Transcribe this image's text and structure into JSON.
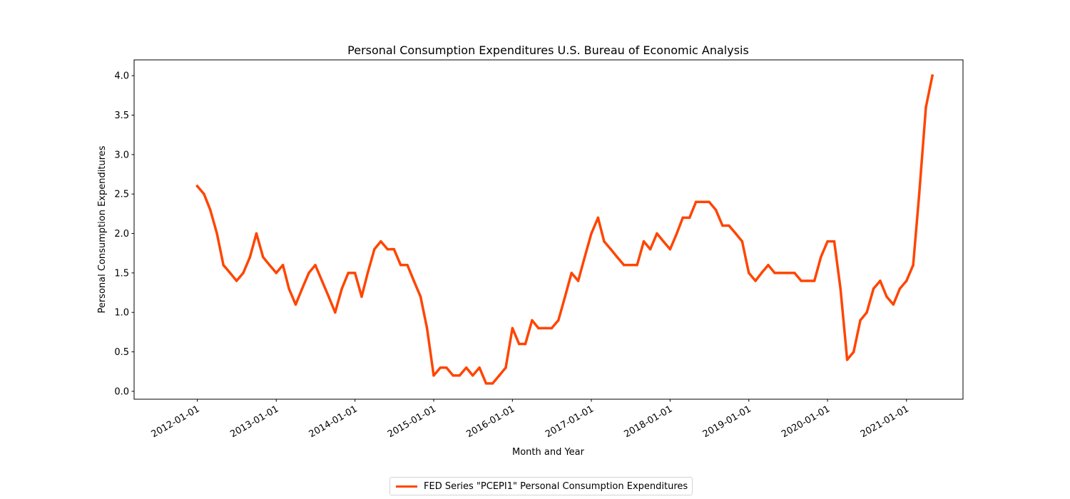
{
  "chart_data": {
    "type": "line",
    "title": "Personal Consumption Expenditures U.S. Bureau of Economic Analysis",
    "xlabel": "Month and Year",
    "ylabel": "Personal Consumption Expenditures",
    "x_tick_labels": [
      "2012-01-01",
      "2013-01-01",
      "2014-01-01",
      "2015-01-01",
      "2016-01-01",
      "2017-01-01",
      "2018-01-01",
      "2019-01-01",
      "2020-01-01",
      "2021-01-01"
    ],
    "y_tick_labels": [
      "0.0",
      "0.5",
      "1.0",
      "1.5",
      "2.0",
      "2.5",
      "3.0",
      "3.5",
      "4.0"
    ],
    "ylim": [
      -0.1,
      4.2
    ],
    "xlim": [
      "2011-03-14",
      "2021-09-20"
    ],
    "grid": false,
    "legend_position": "bottom-center",
    "series": [
      {
        "name": "FED Series \"PCEPI1\" Personal Consumption Expenditures",
        "color": "#ff4500",
        "x": [
          "2012-01-01",
          "2012-02-01",
          "2012-03-01",
          "2012-04-01",
          "2012-05-01",
          "2012-06-01",
          "2012-07-01",
          "2012-08-01",
          "2012-09-01",
          "2012-10-01",
          "2012-11-01",
          "2012-12-01",
          "2013-01-01",
          "2013-02-01",
          "2013-03-01",
          "2013-04-01",
          "2013-05-01",
          "2013-06-01",
          "2013-07-01",
          "2013-08-01",
          "2013-09-01",
          "2013-10-01",
          "2013-11-01",
          "2013-12-01",
          "2014-01-01",
          "2014-02-01",
          "2014-03-01",
          "2014-04-01",
          "2014-05-01",
          "2014-06-01",
          "2014-07-01",
          "2014-08-01",
          "2014-09-01",
          "2014-10-01",
          "2014-11-01",
          "2014-12-01",
          "2015-01-01",
          "2015-02-01",
          "2015-03-01",
          "2015-04-01",
          "2015-05-01",
          "2015-06-01",
          "2015-07-01",
          "2015-08-01",
          "2015-09-01",
          "2015-10-01",
          "2015-11-01",
          "2015-12-01",
          "2016-01-01",
          "2016-02-01",
          "2016-03-01",
          "2016-04-01",
          "2016-05-01",
          "2016-06-01",
          "2016-07-01",
          "2016-08-01",
          "2016-09-01",
          "2016-10-01",
          "2016-11-01",
          "2016-12-01",
          "2017-01-01",
          "2017-02-01",
          "2017-03-01",
          "2017-04-01",
          "2017-05-01",
          "2017-06-01",
          "2017-07-01",
          "2017-08-01",
          "2017-09-01",
          "2017-10-01",
          "2017-11-01",
          "2017-12-01",
          "2018-01-01",
          "2018-02-01",
          "2018-03-01",
          "2018-04-01",
          "2018-05-01",
          "2018-06-01",
          "2018-07-01",
          "2018-08-01",
          "2018-09-01",
          "2018-10-01",
          "2018-11-01",
          "2018-12-01",
          "2019-01-01",
          "2019-02-01",
          "2019-03-01",
          "2019-04-01",
          "2019-05-01",
          "2019-06-01",
          "2019-07-01",
          "2019-08-01",
          "2019-09-01",
          "2019-10-01",
          "2019-11-01",
          "2019-12-01",
          "2020-01-01",
          "2020-02-01",
          "2020-03-01",
          "2020-04-01",
          "2020-05-01",
          "2020-06-01",
          "2020-07-01",
          "2020-08-01",
          "2020-09-01",
          "2020-10-01",
          "2020-11-01",
          "2020-12-01",
          "2021-01-01",
          "2021-02-01",
          "2021-03-01",
          "2021-04-01",
          "2021-05-01"
        ],
        "y": [
          2.6,
          2.5,
          2.3,
          2.0,
          1.6,
          1.5,
          1.4,
          1.5,
          1.7,
          2.0,
          1.7,
          1.6,
          1.5,
          1.6,
          1.3,
          1.1,
          1.3,
          1.5,
          1.6,
          1.4,
          1.2,
          1.0,
          1.3,
          1.5,
          1.5,
          1.2,
          1.5,
          1.8,
          1.9,
          1.8,
          1.8,
          1.6,
          1.6,
          1.4,
          1.2,
          0.8,
          0.2,
          0.3,
          0.3,
          0.2,
          0.2,
          0.3,
          0.2,
          0.3,
          0.1,
          0.1,
          0.2,
          0.3,
          0.8,
          0.6,
          0.6,
          0.9,
          0.8,
          0.8,
          0.8,
          0.9,
          1.2,
          1.5,
          1.4,
          1.7,
          2.0,
          2.2,
          1.9,
          1.8,
          1.7,
          1.6,
          1.6,
          1.6,
          1.9,
          1.8,
          2.0,
          1.9,
          1.8,
          2.0,
          2.2,
          2.2,
          2.4,
          2.4,
          2.4,
          2.3,
          2.1,
          2.1,
          2.0,
          1.9,
          1.5,
          1.4,
          1.5,
          1.6,
          1.5,
          1.5,
          1.5,
          1.5,
          1.4,
          1.4,
          1.4,
          1.7,
          1.9,
          1.9,
          1.3,
          0.4,
          0.5,
          0.9,
          1.0,
          1.3,
          1.4,
          1.2,
          1.1,
          1.3,
          1.4,
          1.6,
          2.5,
          3.6,
          4.0
        ]
      }
    ]
  }
}
